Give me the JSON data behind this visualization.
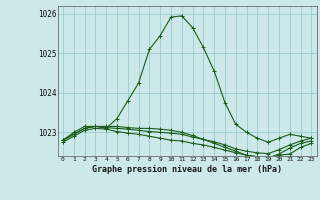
{
  "title": "Graphe pression niveau de la mer (hPa)",
  "background_color": "#cce8e8",
  "grid_color": "#99cccc",
  "line_color": "#1a5c1a",
  "x_labels": [
    "0",
    "1",
    "2",
    "3",
    "4",
    "5",
    "6",
    "7",
    "8",
    "9",
    "10",
    "11",
    "12",
    "13",
    "14",
    "15",
    "16",
    "17",
    "18",
    "19",
    "20",
    "21",
    "22",
    "23"
  ],
  "ylim": [
    1022.4,
    1026.2
  ],
  "yticks": [
    1023,
    1024,
    1025,
    1026
  ],
  "series": [
    [
      1022.8,
      1023.0,
      1023.15,
      1023.15,
      1023.1,
      1023.35,
      1023.8,
      1024.25,
      1025.1,
      1025.45,
      1025.92,
      1025.95,
      1025.65,
      1025.15,
      1024.55,
      1023.75,
      1023.2,
      1023.0,
      1022.85,
      1022.75,
      1022.85,
      1022.95,
      1022.9,
      1022.85
    ],
    [
      1022.8,
      1022.95,
      1023.1,
      1023.15,
      1023.15,
      1023.15,
      1023.12,
      1023.1,
      1023.1,
      1023.08,
      1023.05,
      1023.0,
      1022.92,
      1022.82,
      1022.72,
      1022.62,
      1022.52,
      1022.42,
      1022.38,
      1022.32,
      1022.42,
      1022.45,
      1022.62,
      1022.72
    ],
    [
      1022.8,
      1022.95,
      1023.1,
      1023.15,
      1023.12,
      1023.1,
      1023.08,
      1023.05,
      1023.02,
      1023.0,
      1022.98,
      1022.95,
      1022.88,
      1022.82,
      1022.76,
      1022.68,
      1022.58,
      1022.52,
      1022.48,
      1022.46,
      1022.56,
      1022.68,
      1022.78,
      1022.85
    ],
    [
      1022.75,
      1022.9,
      1023.05,
      1023.1,
      1023.08,
      1023.02,
      1022.98,
      1022.95,
      1022.9,
      1022.85,
      1022.8,
      1022.78,
      1022.72,
      1022.68,
      1022.62,
      1022.55,
      1022.48,
      1022.42,
      1022.38,
      1022.35,
      1022.45,
      1022.6,
      1022.72,
      1022.78
    ]
  ]
}
